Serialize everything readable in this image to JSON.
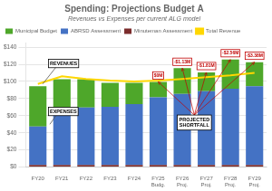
{
  "chart_data": {
    "type": "bar",
    "title": "Spending: Projections Budget A",
    "subtitle": "Revenues vs Expenses per current ALG model",
    "categories": [
      "FY20",
      "FY21",
      "FY22",
      "FY23",
      "FY24",
      "FY25\nBudg.",
      "FY26\nProj.",
      "FY27\nProj.",
      "FY28\nProj.",
      "FY29\nProj."
    ],
    "stacked": true,
    "series": [
      {
        "name": "Minuteman Assessment",
        "color": "#7B2C2C",
        "values": [
          2.5,
          2.5,
          2.5,
          2.5,
          2.5,
          2.5,
          2.5,
          2.5,
          2.5,
          2.5
        ]
      },
      {
        "name": "ABRSD Assessment",
        "color": "#4472C4",
        "values": [
          45,
          62,
          67,
          68,
          71,
          79,
          83,
          86,
          89,
          92
        ]
      },
      {
        "name": "Municipal Budget",
        "color": "#4EA72A",
        "values": [
          47,
          38,
          33,
          28,
          25,
          18,
          30,
          22,
          34,
          28
        ]
      },
      {
        "name": "Total Revenue",
        "type": "line",
        "color": "#FFD700",
        "values": [
          97,
          106,
          103,
          101,
          100,
          101,
          103,
          105,
          107,
          110
        ]
      }
    ],
    "ylim": [
      0,
      145
    ],
    "yticks": [
      {
        "value": 0,
        "label": "$0"
      },
      {
        "value": 20,
        "label": "$20"
      },
      {
        "value": 40,
        "label": "$40"
      },
      {
        "value": 60,
        "label": "$60"
      },
      {
        "value": 80,
        "label": "$80"
      },
      {
        "value": 100,
        "label": "$100"
      },
      {
        "value": 120,
        "label": "$120"
      },
      {
        "value": 140,
        "label": "$140"
      }
    ],
    "grid": true,
    "legend": "upper left",
    "annotations": [
      {
        "text": "$0M",
        "category": "FY25\nBudg.",
        "color": "#C00000"
      },
      {
        "text": "-$1.13M",
        "category": "FY26\nProj.",
        "color": "#C00000"
      },
      {
        "text": "-$1.81M",
        "category": "FY27\nProj.",
        "color": "#C00000"
      },
      {
        "text": "-$2.56M",
        "category": "FY28\nProj.",
        "color": "#C00000"
      },
      {
        "text": "-$3.38M",
        "category": "FY29\nProj.",
        "color": "#C00000"
      },
      {
        "text": "PROJECTED\nSHORTFALL"
      },
      {
        "text": "REVENUES"
      },
      {
        "text": "EXPENSES"
      }
    ]
  }
}
